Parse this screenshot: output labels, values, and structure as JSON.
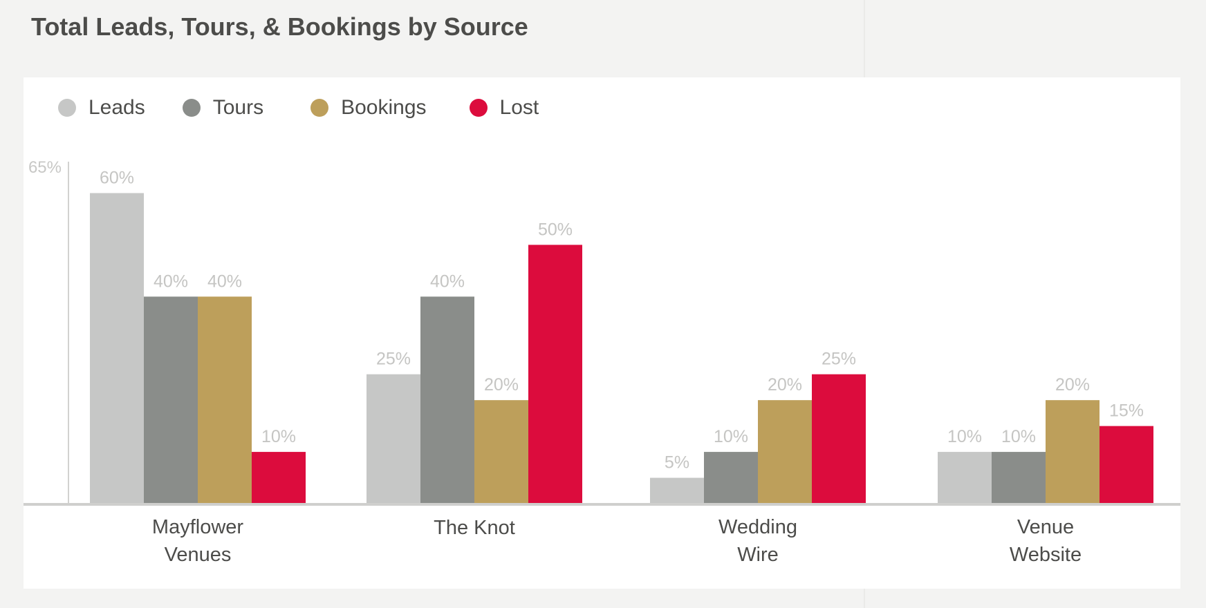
{
  "page": {
    "title": "Total Leads, Tours, & Bookings by Source"
  },
  "chart_data": {
    "type": "bar",
    "title": "Total Leads, Tours, & Bookings by Source",
    "xlabel": "",
    "ylabel": "",
    "ylim": [
      0,
      65
    ],
    "y_ticks": [
      "65%"
    ],
    "value_suffix": "%",
    "legend_position": "top-left",
    "grid": false,
    "categories": [
      [
        "Mayflower",
        "Venues"
      ],
      [
        "The Knot"
      ],
      [
        "Wedding",
        "Wire"
      ],
      [
        "Venue",
        "Website"
      ]
    ],
    "series": [
      {
        "name": "Leads",
        "color": "#c6c7c6",
        "values": [
          60,
          25,
          5,
          10
        ]
      },
      {
        "name": "Tours",
        "color": "#8a8d8a",
        "values": [
          40,
          40,
          10,
          10
        ]
      },
      {
        "name": "Bookings",
        "color": "#bd9f5b",
        "values": [
          40,
          20,
          20,
          20
        ]
      },
      {
        "name": "Lost",
        "color": "#dc0c3d",
        "values": [
          10,
          50,
          25,
          15
        ]
      }
    ]
  }
}
